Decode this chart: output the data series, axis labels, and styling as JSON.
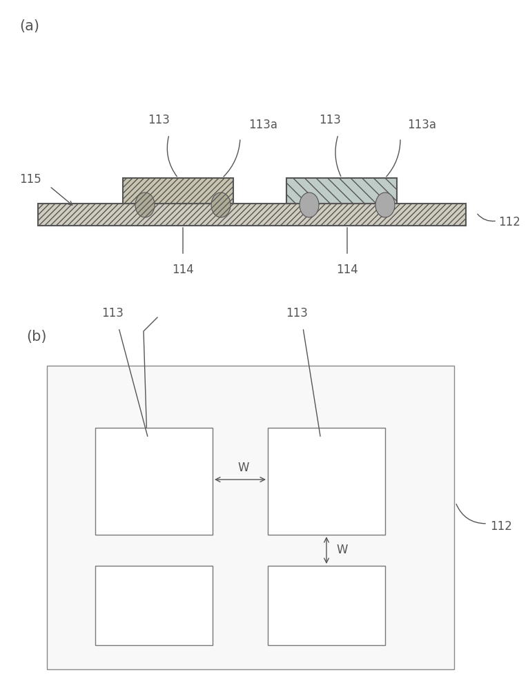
{
  "bg_color": "#ffffff",
  "label_color": "#333333",
  "line_color": "#555555",
  "hatch_color": "#555555",
  "panel_a_label": "(a)",
  "panel_b_label": "(b)",
  "substrate_fc": "#d0ccc0",
  "chip1_fc": "#c8c4b0",
  "chip2_fc": "#c0ccc8",
  "bump_left_fc": "#b0ac98",
  "bump_right_fc": "#aaaaaa",
  "board_fc": "#ffffff",
  "chip_board_fc": "#ffffff",
  "label_115": "115",
  "label_112": "112",
  "label_113": "113",
  "label_113a": "113a",
  "label_114": "114",
  "label_W": "W"
}
